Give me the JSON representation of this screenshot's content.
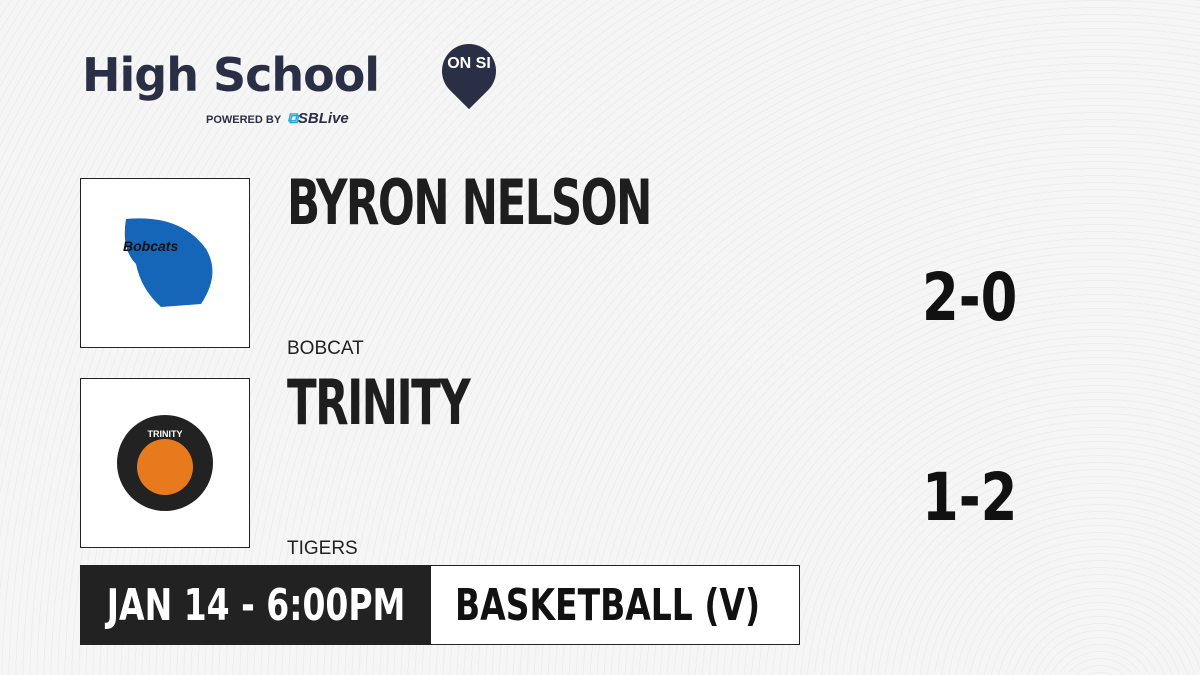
{
  "brand": {
    "title": "High School",
    "badge": "ON SI",
    "powered_by": "POWERED BY",
    "partner": "SBLive"
  },
  "teams": [
    {
      "name": "BYRON NELSON",
      "mascot": "BOBCAT",
      "record": "2-0",
      "logo_text": "Bobcats",
      "color": "#1565b8"
    },
    {
      "name": "TRINITY",
      "mascot": "TIGERS",
      "record": "1-2",
      "logo_text": "TRINITY",
      "color": "#e87a1e"
    }
  ],
  "game": {
    "datetime": "JAN 14 - 6:00PM",
    "sport": "BASKETBALL (V)"
  }
}
